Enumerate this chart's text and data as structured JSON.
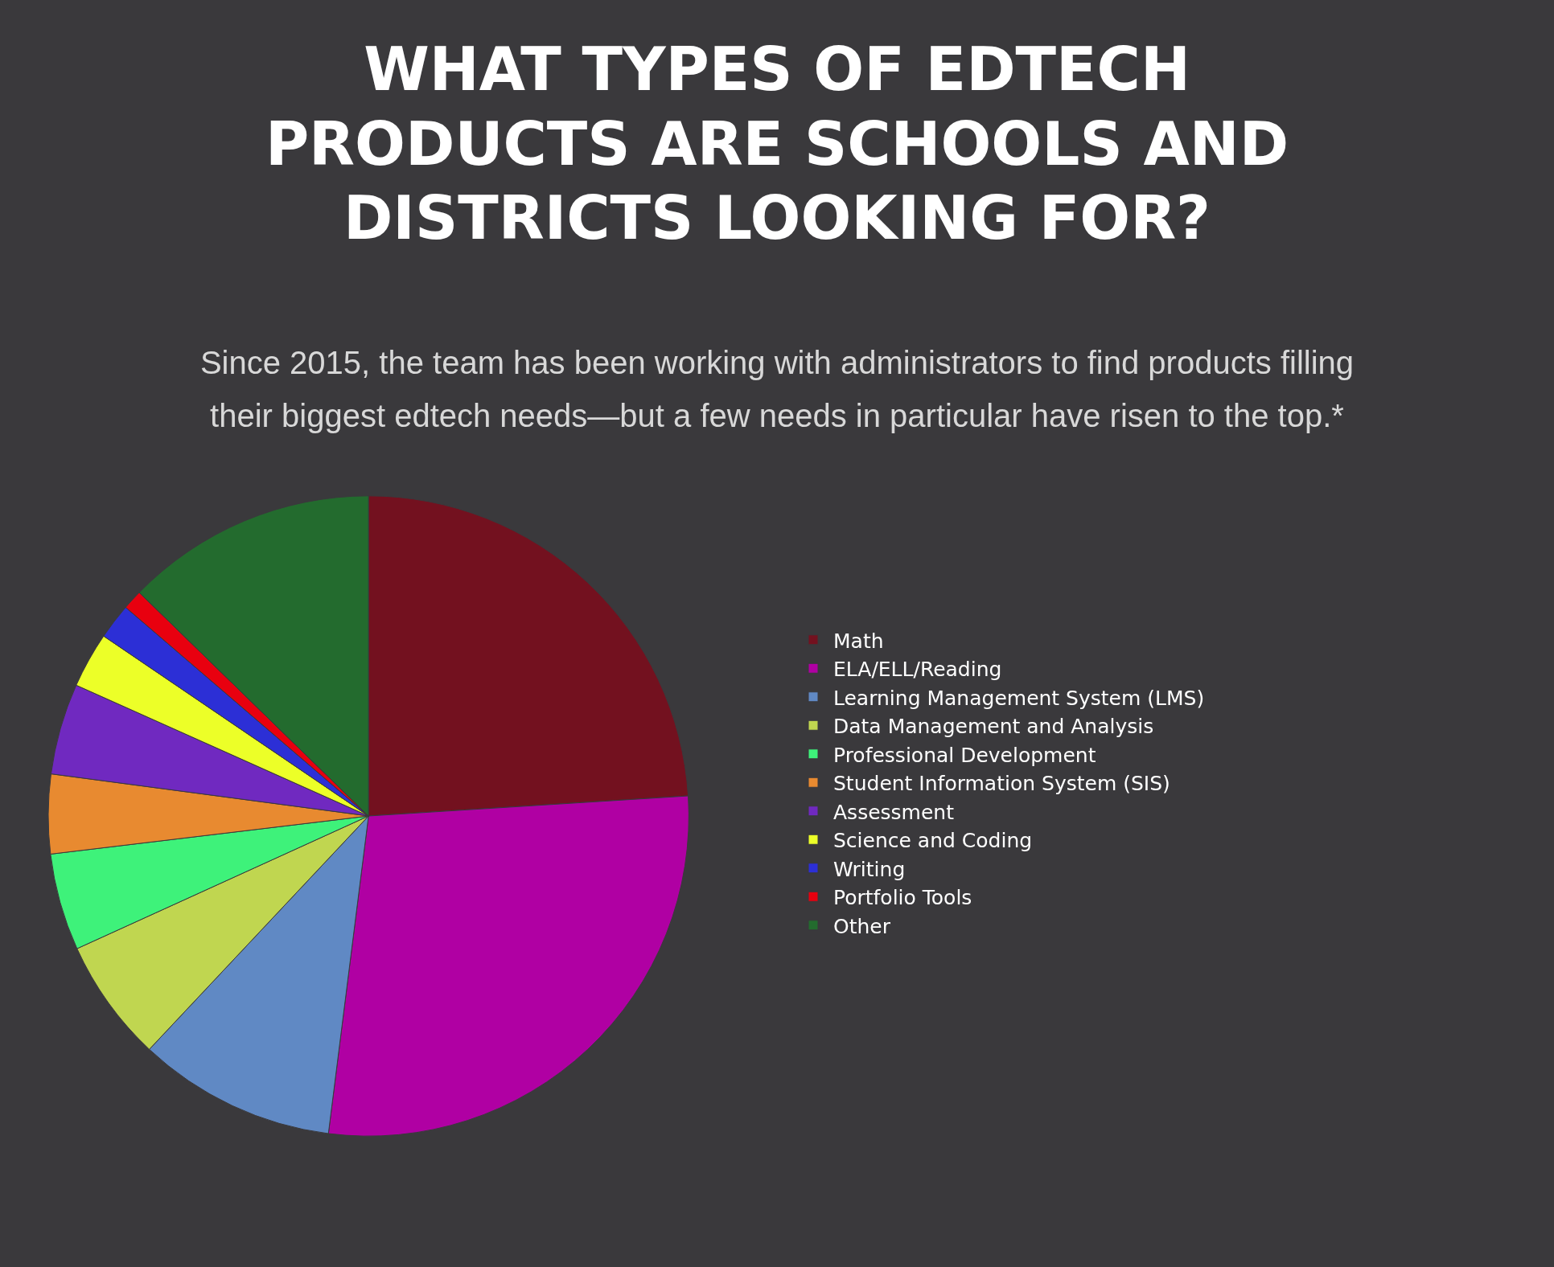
{
  "chart_data": {
    "type": "pie",
    "title": "WHAT TYPES OF EDTECH PRODUCTS ARE SCHOOLS AND DISTRICTS LOOKING FOR?",
    "subtitle": "Since 2015, the team has been working with administrators to find products filling their biggest edtech needs—but a few needs in particular have risen to the top.*",
    "categories": [
      "Math",
      "ELA/ELL/Reading",
      "Learning Management System (LMS)",
      "Data Management and Analysis",
      "Professional Development",
      "Student Information System (SIS)",
      "Assessment",
      "Science and Coding",
      "Writing",
      "Portfolio Tools",
      "Other"
    ],
    "values": [
      24,
      28,
      10,
      6.2,
      4.9,
      4,
      4.6,
      2.8,
      1.8,
      1,
      12.7
    ],
    "colors": [
      "#73111f",
      "#b000a3",
      "#6089c4",
      "#c0d650",
      "#3ef27a",
      "#e88a30",
      "#7029c0",
      "#ecff28",
      "#2c2fd6",
      "#e8000f",
      "#236b2e"
    ],
    "legend": "right"
  }
}
